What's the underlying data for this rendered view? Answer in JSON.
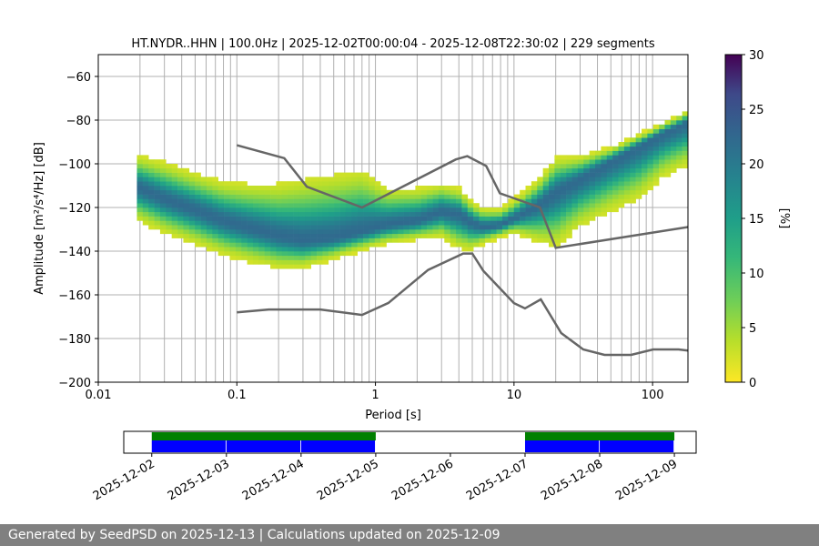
{
  "footer": {
    "text": "Generated by SeedPSD on 2025-12-13 | Calculations updated on 2025-12-09"
  },
  "colorbar": {
    "label": "[%]",
    "ticks": [
      "0",
      "5",
      "10",
      "15",
      "20",
      "25",
      "30"
    ],
    "min": 0,
    "max": 30
  },
  "colors": {
    "nlnm_nhnm": "#666666",
    "coverage_green": "#008000",
    "coverage_blue": "#0000ff",
    "grid": "#b0b0b0"
  },
  "chart_data": [
    {
      "type": "heatmap",
      "title": "HT.NYDR..HHN | 100.0Hz | 2025-12-02T00:00:04 - 2025-12-08T22:30:02 | 229 segments",
      "xlabel": "Period [s]",
      "ylabel": "Amplitude [m²/s⁴/Hz] [dB]",
      "xscale": "log",
      "xlim": [
        0.01,
        180
      ],
      "ylim": [
        -200,
        -50
      ],
      "xticks": [
        {
          "value": 0.01,
          "label": "0.01"
        },
        {
          "value": 0.1,
          "label": "0.1"
        },
        {
          "value": 1,
          "label": "1"
        },
        {
          "value": 10,
          "label": "10"
        },
        {
          "value": 100,
          "label": "100"
        }
      ],
      "yticks": [
        {
          "value": -60,
          "label": "−60"
        },
        {
          "value": -80,
          "label": "−80"
        },
        {
          "value": -100,
          "label": "−100"
        },
        {
          "value": -120,
          "label": "−120"
        },
        {
          "value": -140,
          "label": "−140"
        },
        {
          "value": -160,
          "label": "−160"
        },
        {
          "value": -180,
          "label": "−180"
        },
        {
          "value": -200,
          "label": "−200"
        }
      ],
      "psd_mode": {
        "periods": [
          0.02,
          0.03,
          0.05,
          0.08,
          0.12,
          0.2,
          0.3,
          0.5,
          0.8,
          1.2,
          2,
          3,
          4,
          5,
          6,
          8,
          10,
          15,
          20,
          30,
          50,
          80,
          120,
          180
        ],
        "db": [
          -111,
          -116,
          -121,
          -126,
          -129,
          -133,
          -135,
          -134,
          -131,
          -128,
          -126,
          -122,
          -123,
          -127,
          -129,
          -128,
          -125,
          -119,
          -113,
          -107,
          -99,
          -92,
          -86,
          -81
        ]
      },
      "psd_upper": {
        "periods": [
          0.02,
          0.03,
          0.05,
          0.08,
          0.12,
          0.2,
          0.3,
          0.5,
          0.8,
          1.2,
          2,
          3,
          4,
          5,
          6,
          8,
          10,
          15,
          20,
          30,
          50,
          80,
          120,
          180
        ],
        "db": [
          -97,
          -100,
          -105,
          -109,
          -110,
          -110,
          -108,
          -106,
          -104,
          -112,
          -112,
          -110,
          -112,
          -118,
          -121,
          -121,
          -117,
          -108,
          -98,
          -97,
          -93,
          -87,
          -82,
          -76
        ]
      },
      "psd_lower": {
        "periods": [
          0.02,
          0.03,
          0.05,
          0.08,
          0.12,
          0.2,
          0.3,
          0.5,
          0.8,
          1.2,
          2,
          3,
          4,
          5,
          6,
          8,
          10,
          15,
          20,
          30,
          50,
          80,
          120,
          180
        ],
        "db": [
          -126,
          -131,
          -136,
          -141,
          -144,
          -147,
          -147,
          -143,
          -139,
          -136,
          -134,
          -133,
          -138,
          -139,
          -136,
          -133,
          -131,
          -135,
          -137,
          -128,
          -121,
          -115,
          -105,
          -100
        ]
      },
      "nhnm": {
        "periods": [
          0.1,
          0.22,
          0.32,
          0.8,
          3.8,
          4.6,
          6.3,
          7.9,
          15.4,
          20,
          354.8
        ],
        "db": [
          -91.5,
          -97.4,
          -110.5,
          -120.0,
          -98.0,
          -96.5,
          -101.0,
          -113.5,
          -120.0,
          -138.5,
          -126.0
        ]
      },
      "nlnm": {
        "periods": [
          0.1,
          0.17,
          0.4,
          0.8,
          1.24,
          2.4,
          4.3,
          5.0,
          6.0,
          10.0,
          12.0,
          15.6,
          21.9,
          31.6,
          45.0,
          70.0,
          101.0,
          154.0,
          328.0
        ],
        "db": [
          -168.0,
          -166.7,
          -166.7,
          -169.2,
          -163.7,
          -148.6,
          -141.1,
          -141.1,
          -149.0,
          -163.8,
          -166.2,
          -162.1,
          -177.5,
          -185.0,
          -187.5,
          -187.5,
          -185.0,
          -185.0,
          -187.5
        ]
      }
    },
    {
      "type": "timeline",
      "date_ticks": [
        "2025-12-02",
        "2025-12-03",
        "2025-12-04",
        "2025-12-05",
        "2025-12-06",
        "2025-12-07",
        "2025-12-08",
        "2025-12-09"
      ],
      "range": [
        "2025-12-01T15:00:00",
        "2025-12-09T07:00:00"
      ],
      "green_segments": [
        {
          "start": "2025-12-02T00:00:00",
          "end": "2025-12-05T00:00:00"
        },
        {
          "start": "2025-12-07T00:00:00",
          "end": "2025-12-09T00:00:00"
        }
      ],
      "blue_segments": [
        {
          "start": "2025-12-02T00:00:00",
          "end": "2025-12-02T23:45:00"
        },
        {
          "start": "2025-12-03T00:00:00",
          "end": "2025-12-03T23:45:00"
        },
        {
          "start": "2025-12-04T00:00:00",
          "end": "2025-12-04T23:45:00"
        },
        {
          "start": "2025-12-07T00:00:00",
          "end": "2025-12-07T23:45:00"
        },
        {
          "start": "2025-12-08T00:00:00",
          "end": "2025-12-08T23:45:00"
        }
      ]
    }
  ]
}
